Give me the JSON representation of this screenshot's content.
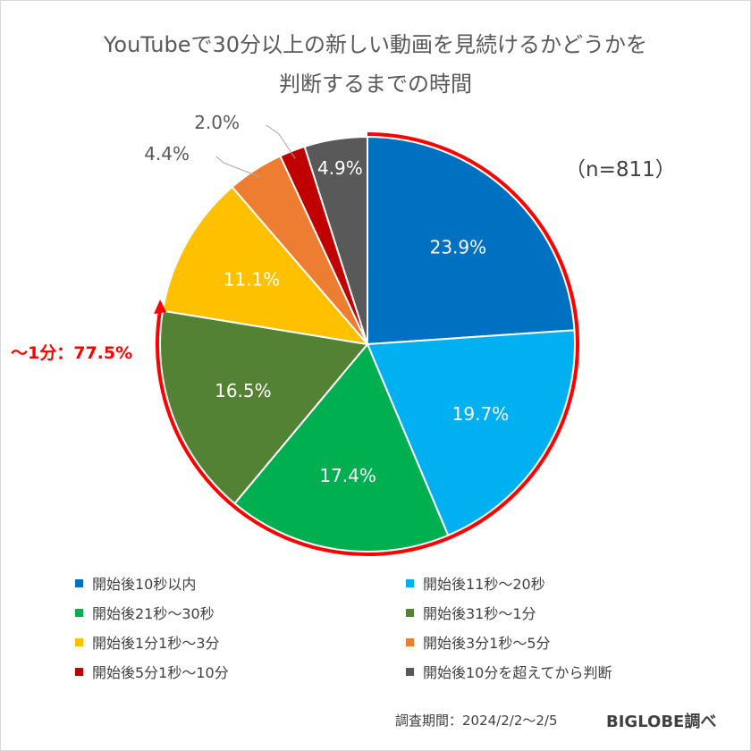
{
  "title_line1": "YouTubeで30分以上の新しい動画を見続けるかどうかを",
  "title_line2": "判断するまでの時間",
  "sample_size": "（n=811）",
  "callout": "～1分：77.5%",
  "source": "調査期間：2024/2/2～2/5",
  "brand": "BIGLOBE調べ",
  "chart_data": {
    "type": "pie",
    "start_angle_deg": 0,
    "direction": "clockwise",
    "slices": [
      {
        "label": "開始後10秒以内",
        "value": 23.9,
        "display": "23.9%",
        "color": "#0070c0",
        "label_inside": true
      },
      {
        "label": "開始後11秒～20秒",
        "value": 19.7,
        "display": "19.7%",
        "color": "#00b0f0",
        "label_inside": true
      },
      {
        "label": "開始後21秒～30秒",
        "value": 17.4,
        "display": "17.4%",
        "color": "#00b050",
        "label_inside": true
      },
      {
        "label": "開始後31秒～1分",
        "value": 16.5,
        "display": "16.5%",
        "color": "#548235",
        "label_inside": true
      },
      {
        "label": "開始後1分1秒～3分",
        "value": 11.1,
        "display": "11.1%",
        "color": "#ffc000",
        "label_inside": true
      },
      {
        "label": "開始後3分1秒～5分",
        "value": 4.4,
        "display": "4.4%",
        "color": "#ed7d31",
        "label_inside": false
      },
      {
        "label": "開始後5分1秒～10分",
        "value": 2.0,
        "display": "2.0%",
        "color": "#c00000",
        "label_inside": false
      },
      {
        "label": "開始後10分を超えてから判断",
        "value": 4.9,
        "display": "4.9%",
        "color": "#595959",
        "label_inside": true
      }
    ],
    "highlight": {
      "from_slice": 0,
      "to_slice": 3,
      "total": 77.5,
      "color": "#ff0000"
    },
    "legend_position": "bottom"
  }
}
